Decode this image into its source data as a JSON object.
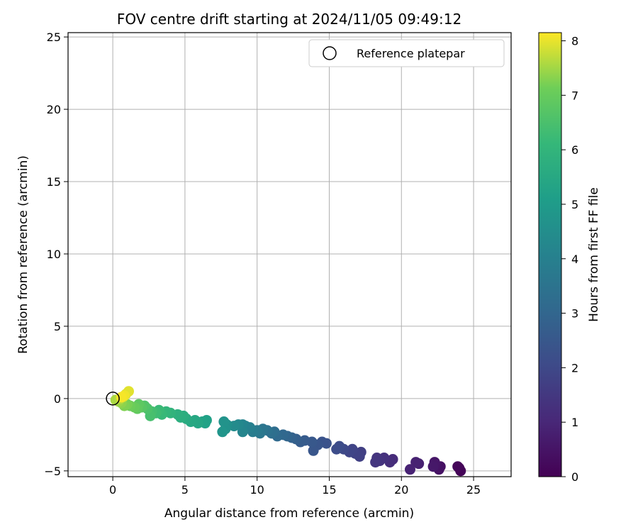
{
  "chart_data": {
    "type": "scatter",
    "title": "FOV centre drift starting at 2024/11/05 09:49:12",
    "xlabel": "Angular distance from reference (arcmin)",
    "ylabel": "Rotation from reference (arcmin)",
    "xlim": [
      -3.1,
      27.6
    ],
    "ylim": [
      -5.4,
      25.3
    ],
    "xticks": [
      0,
      5,
      10,
      15,
      20,
      25
    ],
    "yticks": [
      -5,
      0,
      5,
      10,
      15,
      20,
      25
    ],
    "grid": true,
    "legend": {
      "position": "top-right",
      "entries": [
        "Reference platepar"
      ]
    },
    "reference_point": {
      "x": 0,
      "y": 0
    },
    "colorbar": {
      "label": "Hours from first FF file",
      "min": 0,
      "max": 8.15,
      "ticks": [
        0,
        1,
        2,
        3,
        4,
        5,
        6,
        7,
        8
      ],
      "colormap": "viridis"
    },
    "series": [
      {
        "points": [
          {
            "x": 24.1,
            "y": -5.0,
            "c": 0.05
          },
          {
            "x": 24.0,
            "y": -4.8,
            "c": 0.1
          },
          {
            "x": 23.9,
            "y": -4.7,
            "c": 0.15
          },
          {
            "x": 22.7,
            "y": -4.7,
            "c": 0.4
          },
          {
            "x": 22.6,
            "y": -4.9,
            "c": 0.45
          },
          {
            "x": 22.4,
            "y": -4.6,
            "c": 0.5
          },
          {
            "x": 22.3,
            "y": -4.4,
            "c": 0.55
          },
          {
            "x": 22.2,
            "y": -4.7,
            "c": 0.6
          },
          {
            "x": 21.2,
            "y": -4.5,
            "c": 0.8
          },
          {
            "x": 21.0,
            "y": -4.4,
            "c": 0.85
          },
          {
            "x": 20.6,
            "y": -4.9,
            "c": 0.9
          },
          {
            "x": 19.4,
            "y": -4.2,
            "c": 1.15
          },
          {
            "x": 19.2,
            "y": -4.4,
            "c": 1.2
          },
          {
            "x": 18.8,
            "y": -4.1,
            "c": 1.3
          },
          {
            "x": 18.5,
            "y": -4.3,
            "c": 1.35
          },
          {
            "x": 18.3,
            "y": -4.1,
            "c": 1.4
          },
          {
            "x": 18.2,
            "y": -4.4,
            "c": 1.45
          },
          {
            "x": 17.2,
            "y": -3.7,
            "c": 1.7
          },
          {
            "x": 17.1,
            "y": -4.0,
            "c": 1.75
          },
          {
            "x": 16.8,
            "y": -3.8,
            "c": 1.8
          },
          {
            "x": 16.6,
            "y": -3.5,
            "c": 1.85
          },
          {
            "x": 16.4,
            "y": -3.7,
            "c": 1.9
          },
          {
            "x": 16.0,
            "y": -3.5,
            "c": 2.0
          },
          {
            "x": 15.7,
            "y": -3.3,
            "c": 2.1
          },
          {
            "x": 15.5,
            "y": -3.5,
            "c": 2.15
          },
          {
            "x": 14.8,
            "y": -3.1,
            "c": 2.3
          },
          {
            "x": 14.5,
            "y": -3.0,
            "c": 2.35
          },
          {
            "x": 14.2,
            "y": -3.2,
            "c": 2.4
          },
          {
            "x": 13.9,
            "y": -3.6,
            "c": 2.45
          },
          {
            "x": 13.8,
            "y": -3.0,
            "c": 2.5
          },
          {
            "x": 13.3,
            "y": -2.9,
            "c": 2.6
          },
          {
            "x": 13.0,
            "y": -3.0,
            "c": 2.65
          },
          {
            "x": 12.7,
            "y": -2.8,
            "c": 2.75
          },
          {
            "x": 12.4,
            "y": -2.7,
            "c": 2.85
          },
          {
            "x": 12.1,
            "y": -2.6,
            "c": 2.95
          },
          {
            "x": 11.8,
            "y": -2.5,
            "c": 3.05
          },
          {
            "x": 11.4,
            "y": -2.6,
            "c": 3.15
          },
          {
            "x": 11.2,
            "y": -2.3,
            "c": 3.25
          },
          {
            "x": 11.0,
            "y": -2.4,
            "c": 3.35
          },
          {
            "x": 10.7,
            "y": -2.2,
            "c": 3.45
          },
          {
            "x": 10.4,
            "y": -2.1,
            "c": 3.55
          },
          {
            "x": 10.2,
            "y": -2.4,
            "c": 3.65
          },
          {
            "x": 10.0,
            "y": -2.2,
            "c": 3.75
          },
          {
            "x": 9.7,
            "y": -2.3,
            "c": 3.85
          },
          {
            "x": 9.5,
            "y": -2.0,
            "c": 3.95
          },
          {
            "x": 9.2,
            "y": -1.9,
            "c": 4.05
          },
          {
            "x": 9.0,
            "y": -1.8,
            "c": 4.15
          },
          {
            "x": 9.0,
            "y": -2.3,
            "c": 4.2
          },
          {
            "x": 8.7,
            "y": -1.8,
            "c": 4.3
          },
          {
            "x": 8.4,
            "y": -1.9,
            "c": 4.4
          },
          {
            "x": 7.9,
            "y": -1.8,
            "c": 4.6
          },
          {
            "x": 7.8,
            "y": -2.1,
            "c": 4.65
          },
          {
            "x": 7.7,
            "y": -1.6,
            "c": 4.7
          },
          {
            "x": 7.6,
            "y": -2.3,
            "c": 4.75
          },
          {
            "x": 6.5,
            "y": -1.5,
            "c": 5.2
          },
          {
            "x": 6.4,
            "y": -1.7,
            "c": 5.25
          },
          {
            "x": 6.2,
            "y": -1.6,
            "c": 5.3
          },
          {
            "x": 5.9,
            "y": -1.7,
            "c": 5.4
          },
          {
            "x": 5.7,
            "y": -1.5,
            "c": 5.45
          },
          {
            "x": 5.4,
            "y": -1.6,
            "c": 5.5
          },
          {
            "x": 5.1,
            "y": -1.4,
            "c": 5.6
          },
          {
            "x": 4.9,
            "y": -1.2,
            "c": 5.7
          },
          {
            "x": 4.7,
            "y": -1.3,
            "c": 5.75
          },
          {
            "x": 4.5,
            "y": -1.1,
            "c": 5.8
          },
          {
            "x": 4.0,
            "y": -1.0,
            "c": 5.95
          },
          {
            "x": 3.7,
            "y": -0.9,
            "c": 6.05
          },
          {
            "x": 3.4,
            "y": -1.1,
            "c": 6.15
          },
          {
            "x": 3.2,
            "y": -0.8,
            "c": 6.2
          },
          {
            "x": 3.0,
            "y": -1.0,
            "c": 6.3
          },
          {
            "x": 2.7,
            "y": -0.9,
            "c": 6.4
          },
          {
            "x": 2.6,
            "y": -1.2,
            "c": 6.45
          },
          {
            "x": 2.4,
            "y": -0.7,
            "c": 6.55
          },
          {
            "x": 2.2,
            "y": -0.5,
            "c": 6.65
          },
          {
            "x": 2.0,
            "y": -0.6,
            "c": 6.75
          },
          {
            "x": 1.8,
            "y": -0.4,
            "c": 6.85
          },
          {
            "x": 1.7,
            "y": -0.7,
            "c": 6.9
          },
          {
            "x": 1.5,
            "y": -0.6,
            "c": 7.0
          },
          {
            "x": 1.2,
            "y": -0.5,
            "c": 7.1
          },
          {
            "x": 1.0,
            "y": -0.4,
            "c": 7.2
          },
          {
            "x": 0.8,
            "y": -0.5,
            "c": 7.25
          },
          {
            "x": 0.6,
            "y": -0.3,
            "c": 7.35
          },
          {
            "x": 0.4,
            "y": -0.2,
            "c": 7.45
          },
          {
            "x": 0.2,
            "y": -0.1,
            "c": 7.55
          },
          {
            "x": 0.5,
            "y": 0.0,
            "c": 7.65
          },
          {
            "x": 0.7,
            "y": 0.1,
            "c": 7.75
          },
          {
            "x": 0.9,
            "y": 0.3,
            "c": 7.85
          },
          {
            "x": 1.1,
            "y": 0.5,
            "c": 7.95
          },
          {
            "x": 0.8,
            "y": 0.2,
            "c": 8.05
          },
          {
            "x": 0.6,
            "y": 0.1,
            "c": 8.1
          }
        ]
      }
    ]
  }
}
